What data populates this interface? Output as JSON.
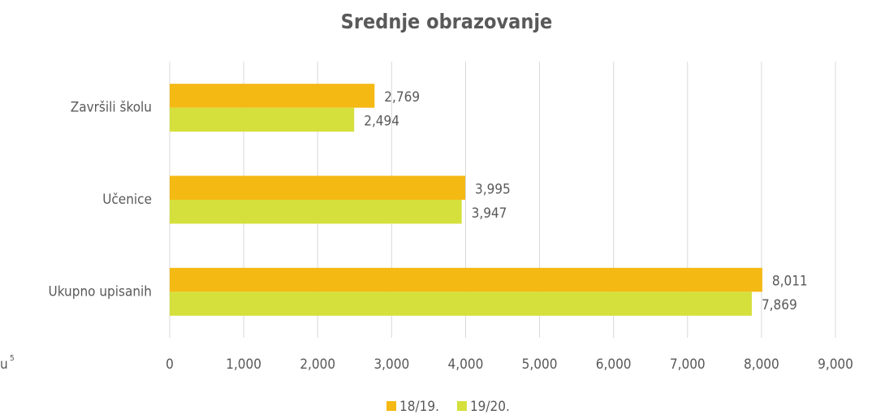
{
  "chart_data": {
    "type": "bar",
    "orientation": "horizontal",
    "title": "Srednje obrazovanje",
    "categories": [
      "Završili školu",
      "Učenice",
      "Ukupno upisanih"
    ],
    "series": [
      {
        "name": "18/19.",
        "color": "#f5b914",
        "values": [
          2769,
          3995,
          8011
        ],
        "value_labels": [
          "2,769",
          "3,995",
          "8,011"
        ]
      },
      {
        "name": "19/20.",
        "color": "#d5e03c",
        "values": [
          2494,
          3947,
          7869
        ],
        "value_labels": [
          "2,494",
          "3,947",
          "7,869"
        ]
      }
    ],
    "xlim": [
      0,
      9000
    ],
    "xticks": [
      0,
      {
        "value": 1000,
        "label": "1,000"
      },
      {
        "value": 2000,
        "label": "2,000"
      },
      {
        "value": 3000,
        "label": "3,000"
      },
      {
        "value": 4000,
        "label": "4,000"
      },
      {
        "value": 5000,
        "label": "5,000"
      },
      {
        "value": 6000,
        "label": "6,000"
      },
      {
        "value": 7000,
        "label": "7,000"
      },
      {
        "value": 8000,
        "label": "8,000"
      },
      {
        "value": 9000,
        "label": "9,000"
      }
    ],
    "grid": true,
    "legend": "bottom",
    "annotation": "u",
    "annotation_superscript": "5"
  }
}
